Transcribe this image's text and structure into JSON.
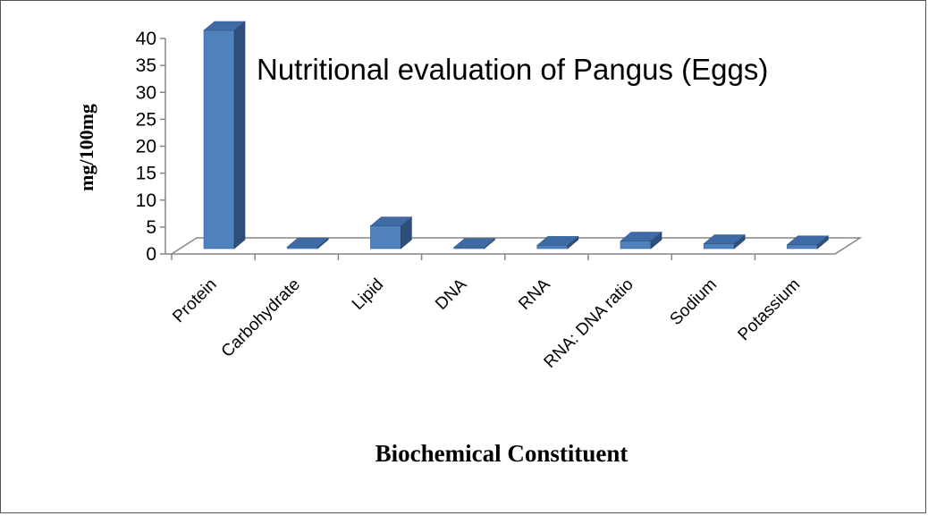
{
  "chart_data": {
    "type": "bar",
    "title": "Nutritional evaluation of Pangus (Eggs)",
    "xlabel": "Biochemical Constituent",
    "ylabel": "mg/100mg",
    "categories": [
      "Protein",
      "Carbohydrate",
      "Lipid",
      "DNA",
      "RNA",
      "RNA: DNA ratio",
      "Sodium",
      "Potassium"
    ],
    "values": [
      40.5,
      0.3,
      4.2,
      0.2,
      0.6,
      1.4,
      0.9,
      0.7
    ],
    "ylim": [
      0,
      40
    ],
    "yticks": [
      "0",
      "5",
      "10",
      "15",
      "20",
      "25",
      "30",
      "35",
      "40"
    ],
    "grid": false,
    "legend": "none",
    "colors": {
      "bar_front": "#4F81BD",
      "bar_side": "#2D4F79",
      "bar_top": "#3E6BA3",
      "axis": "#868686"
    }
  }
}
